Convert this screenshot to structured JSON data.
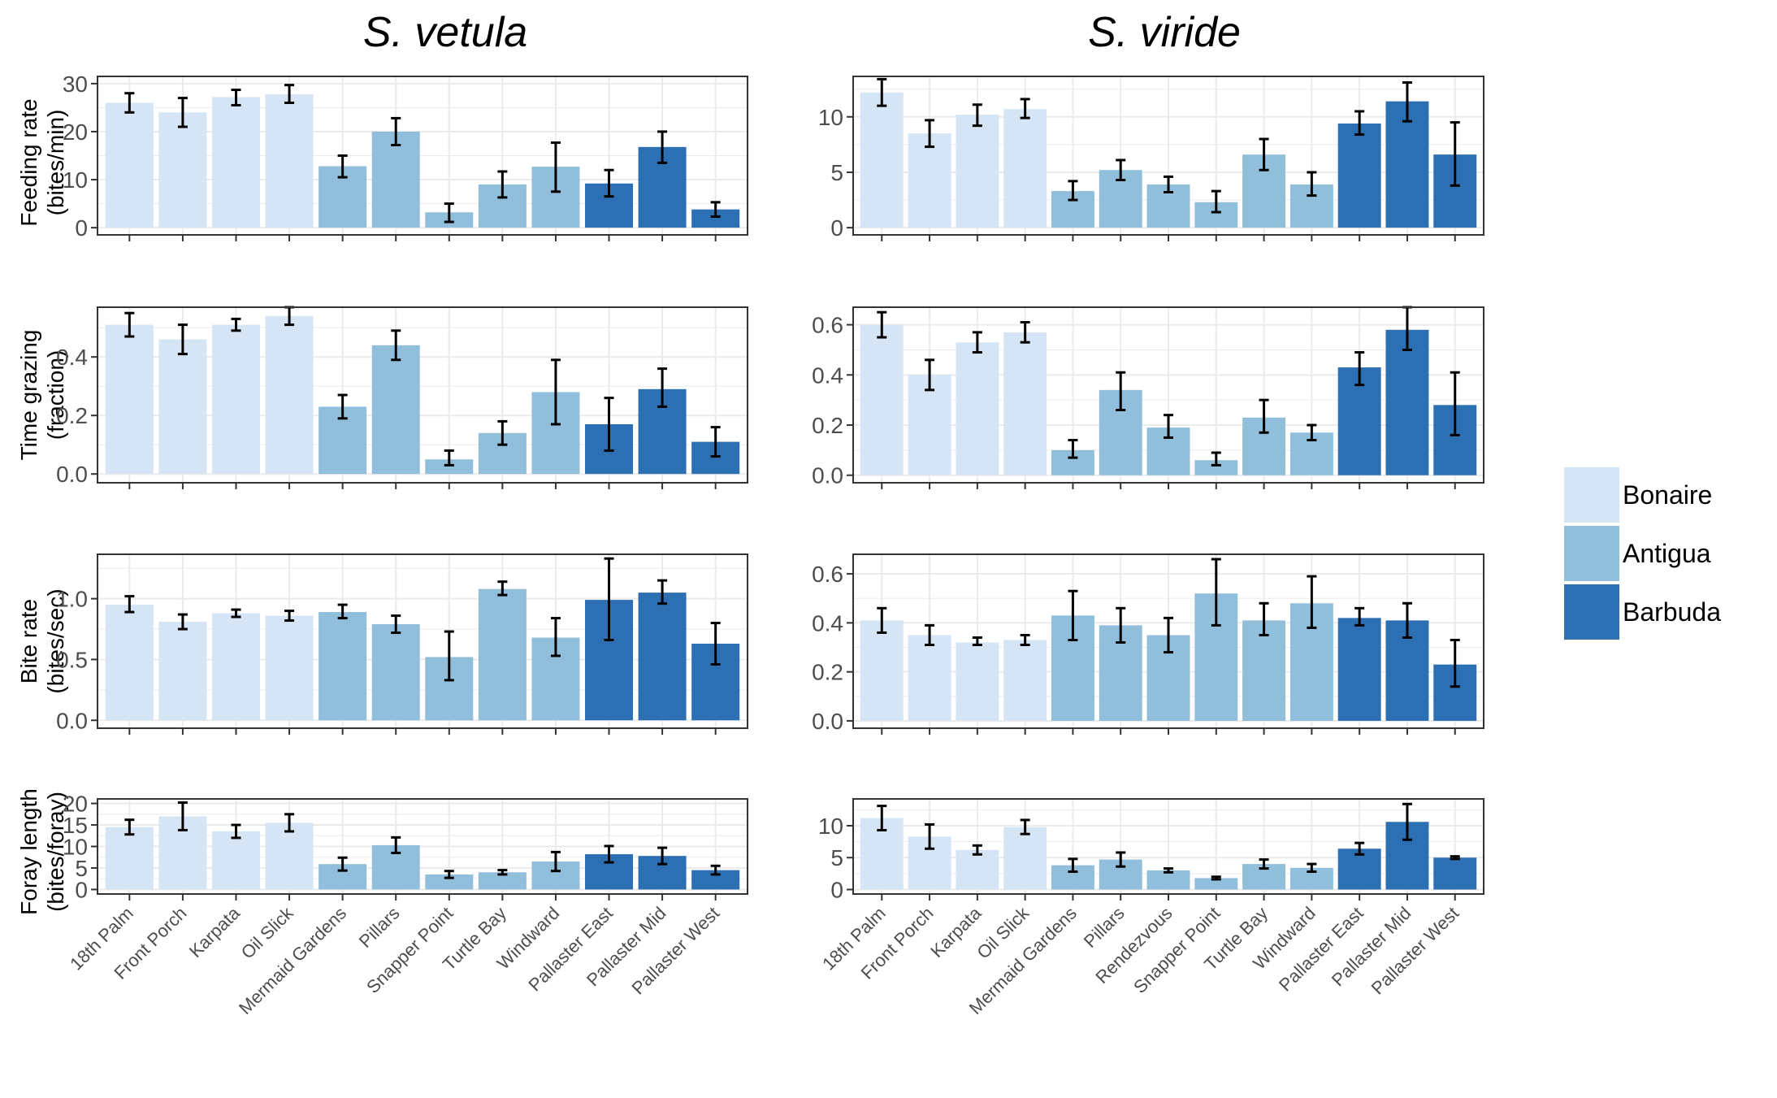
{
  "chart_data": {
    "type": "bar",
    "group_colors": {
      "Bonaire": "#d5e5f5",
      "Antigua": "#91bedb",
      "Barbuda": "#2d6fb3"
    },
    "legend": {
      "entries": [
        "Bonaire",
        "Antigua",
        "Barbuda"
      ],
      "position": "right"
    },
    "grid": true,
    "rows": [
      {
        "ylabel": [
          "Feeding rate",
          "(bites/min)"
        ]
      },
      {
        "ylabel": [
          "Time grazing",
          "(fraction)"
        ]
      },
      {
        "ylabel": [
          "Bite rate",
          "(bites/sec)"
        ]
      },
      {
        "ylabel": [
          "Foray length",
          "(bites/foray)"
        ]
      }
    ],
    "columns": [
      {
        "title": "S. vetula",
        "categories": [
          "18th Palm",
          "Front Porch",
          "Karpata",
          "Oil Slick",
          "Mermaid Gardens",
          "Pillars",
          "Snapper Point",
          "Turtle Bay",
          "Windward",
          "Pallaster East",
          "Pallaster Mid",
          "Pallaster West"
        ],
        "groups": [
          "Bonaire",
          "Bonaire",
          "Bonaire",
          "Bonaire",
          "Antigua",
          "Antigua",
          "Antigua",
          "Antigua",
          "Antigua",
          "Barbuda",
          "Barbuda",
          "Barbuda"
        ],
        "panels": [
          {
            "ylim": [
              -1.5,
              31.5
            ],
            "yticks": [
              0,
              10,
              20,
              30
            ],
            "values": [
              26,
              24,
              27.2,
              27.8,
              12.8,
              20,
              3.2,
              9,
              12.7,
              9.2,
              16.8,
              3.8
            ],
            "err_low": [
              24,
              21,
              25.5,
              26,
              10.5,
              17.2,
              1.2,
              6.3,
              7.5,
              6.5,
              13.5,
              2.3
            ],
            "err_high": [
              28,
              27,
              28.7,
              29.7,
              15,
              22.8,
              5,
              11.7,
              17.7,
              12,
              20,
              5.3
            ]
          },
          {
            "ylim": [
              -0.03,
              0.57
            ],
            "yticks": [
              0.0,
              0.2,
              0.4
            ],
            "tick_decimals": 1,
            "values": [
              0.51,
              0.46,
              0.51,
              0.54,
              0.23,
              0.44,
              0.05,
              0.14,
              0.28,
              0.17,
              0.29,
              0.11
            ],
            "err_low": [
              0.47,
              0.41,
              0.49,
              0.51,
              0.19,
              0.39,
              0.03,
              0.1,
              0.17,
              0.08,
              0.23,
              0.06
            ],
            "err_high": [
              0.55,
              0.51,
              0.53,
              0.57,
              0.27,
              0.49,
              0.08,
              0.18,
              0.39,
              0.26,
              0.36,
              0.16
            ]
          },
          {
            "ylim": [
              -0.065,
              1.365
            ],
            "yticks": [
              0.0,
              0.5,
              1.0
            ],
            "tick_decimals": 1,
            "values": [
              0.95,
              0.81,
              0.88,
              0.86,
              0.89,
              0.79,
              0.52,
              1.08,
              0.68,
              0.99,
              1.05,
              0.63
            ],
            "err_low": [
              0.89,
              0.75,
              0.85,
              0.82,
              0.84,
              0.72,
              0.33,
              1.03,
              0.53,
              0.66,
              0.96,
              0.46
            ],
            "err_high": [
              1.02,
              0.87,
              0.91,
              0.9,
              0.95,
              0.86,
              0.73,
              1.14,
              0.84,
              1.33,
              1.15,
              0.8
            ]
          },
          {
            "ylim": [
              -1.05,
              21.05
            ],
            "yticks": [
              0,
              5,
              10,
              15,
              20
            ],
            "values": [
              14.5,
              17,
              13.5,
              15.5,
              5.9,
              10.3,
              3.5,
              4,
              6.5,
              8.2,
              7.8,
              4.5
            ],
            "err_low": [
              12.8,
              13.8,
              12,
              13.5,
              4.4,
              8.5,
              2.7,
              3.5,
              4.3,
              6.3,
              5.9,
              3.5
            ],
            "err_high": [
              16.2,
              20.2,
              15,
              17.5,
              7.4,
              12.1,
              4.3,
              4.5,
              8.7,
              10.1,
              9.7,
              5.5
            ]
          }
        ]
      },
      {
        "title": "S. viride",
        "categories": [
          "18th Palm",
          "Front Porch",
          "Karpata",
          "Oil Slick",
          "Mermaid Gardens",
          "Pillars",
          "Rendezvous",
          "Snapper Point",
          "Turtle Bay",
          "Windward",
          "Pallaster East",
          "Pallaster Mid",
          "Pallaster West"
        ],
        "groups": [
          "Bonaire",
          "Bonaire",
          "Bonaire",
          "Bonaire",
          "Antigua",
          "Antigua",
          "Antigua",
          "Antigua",
          "Antigua",
          "Antigua",
          "Barbuda",
          "Barbuda",
          "Barbuda"
        ],
        "panels": [
          {
            "ylim": [
              -0.65,
              13.65
            ],
            "yticks": [
              0,
              5,
              10
            ],
            "values": [
              12.2,
              8.5,
              10.2,
              10.7,
              3.3,
              5.2,
              3.9,
              2.3,
              6.6,
              3.9,
              9.4,
              11.4,
              6.6
            ],
            "err_low": [
              11,
              7.3,
              9.2,
              9.9,
              2.5,
              4.3,
              3.2,
              1.4,
              5.2,
              2.9,
              8.4,
              9.6,
              3.8
            ],
            "err_high": [
              13.4,
              9.7,
              11.1,
              11.6,
              4.2,
              6.1,
              4.6,
              3.3,
              8,
              5,
              10.5,
              13.1,
              9.5
            ]
          },
          {
            "ylim": [
              -0.03,
              0.67
            ],
            "yticks": [
              0.0,
              0.2,
              0.4,
              0.6
            ],
            "tick_decimals": 1,
            "values": [
              0.6,
              0.4,
              0.53,
              0.57,
              0.1,
              0.34,
              0.19,
              0.06,
              0.23,
              0.17,
              0.43,
              0.58,
              0.28
            ],
            "err_low": [
              0.55,
              0.34,
              0.49,
              0.53,
              0.07,
              0.26,
              0.15,
              0.04,
              0.17,
              0.14,
              0.36,
              0.5,
              0.16
            ],
            "err_high": [
              0.65,
              0.46,
              0.57,
              0.61,
              0.14,
              0.41,
              0.24,
              0.09,
              0.3,
              0.2,
              0.49,
              0.67,
              0.41
            ]
          },
          {
            "ylim": [
              -0.03,
              0.68
            ],
            "yticks": [
              0.0,
              0.2,
              0.4,
              0.6
            ],
            "tick_decimals": 1,
            "values": [
              0.41,
              0.35,
              0.32,
              0.33,
              0.43,
              0.39,
              0.35,
              0.52,
              0.41,
              0.48,
              0.42,
              0.41,
              0.23
            ],
            "err_low": [
              0.36,
              0.31,
              0.31,
              0.31,
              0.33,
              0.32,
              0.28,
              0.39,
              0.35,
              0.38,
              0.39,
              0.34,
              0.14
            ],
            "err_high": [
              0.46,
              0.39,
              0.34,
              0.35,
              0.53,
              0.46,
              0.42,
              0.66,
              0.48,
              0.59,
              0.46,
              0.48,
              0.33
            ]
          },
          {
            "ylim": [
              -0.7,
              14.2
            ],
            "yticks": [
              0,
              5,
              10
            ],
            "values": [
              11.2,
              8.3,
              6.2,
              9.8,
              3.8,
              4.7,
              3,
              1.8,
              4,
              3.4,
              6.4,
              10.6,
              5
            ],
            "err_low": [
              9.3,
              6.4,
              5.5,
              8.7,
              2.8,
              3.6,
              2.7,
              1.6,
              3.3,
              2.8,
              5.5,
              7.8,
              4.8
            ],
            "err_high": [
              13.1,
              10.2,
              6.9,
              10.9,
              4.8,
              5.8,
              3.3,
              2,
              4.7,
              4,
              7.3,
              13.4,
              5.2
            ]
          }
        ]
      }
    ]
  }
}
